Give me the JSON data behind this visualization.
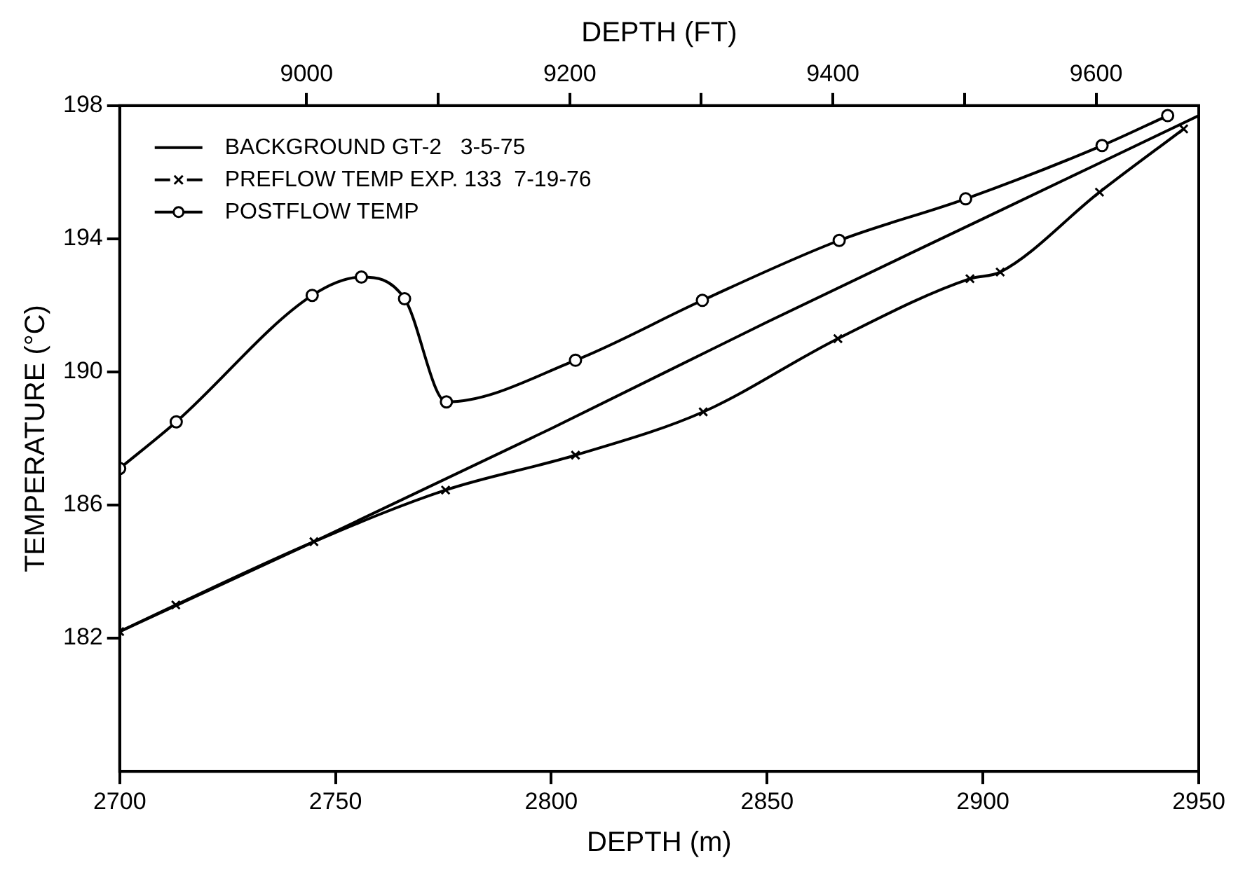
{
  "chart_data": {
    "type": "line",
    "xlabel": "DEPTH (m)",
    "x2label": "DEPTH (FT)",
    "ylabel": "TEMPERATURE (°C)",
    "xlim": [
      2700,
      2950
    ],
    "xticks": [
      2700,
      2750,
      2800,
      2850,
      2900,
      2950
    ],
    "x2lim": [
      8858,
      9678
    ],
    "x2ticks": [
      9000,
      {
        "value": 9100,
        "label": null
      },
      9200,
      {
        "value": 9300,
        "label": null
      },
      9400,
      {
        "value": 9500,
        "label": null
      },
      9600
    ],
    "ylim": [
      178,
      198
    ],
    "yticks": [
      182,
      186,
      190,
      194,
      198
    ],
    "legend": "top left",
    "line_style": "solid",
    "series": [
      {
        "name": "BACKGROUND GT-2   3-5-75",
        "color": "#000000",
        "marker": "none",
        "x": [
          2700,
          2745,
          2800,
          2850,
          2900,
          2950
        ],
        "values": [
          182.2,
          184.9,
          188.3,
          191.5,
          194.6,
          197.7
        ]
      },
      {
        "name": "PREFLOW TEMP EXP. 133  7-19-76",
        "color": "#000000",
        "marker": "cross",
        "x": [
          2700,
          2713,
          2745,
          2775.5,
          2805.6,
          2835.2,
          2866.4,
          2897,
          2904,
          2927,
          2946.5
        ],
        "values": [
          182.2,
          183.0,
          184.9,
          186.45,
          187.5,
          188.8,
          191.0,
          192.8,
          193.0,
          195.4,
          197.3
        ]
      },
      {
        "name": "POSTFLOW TEMP",
        "color": "#000000",
        "marker": "circle",
        "x": [
          2700,
          2713.1,
          2744.6,
          2756,
          2766,
          2775.7,
          2805.6,
          2835,
          2866.7,
          2896,
          2927.6,
          2942.8
        ],
        "values": [
          187.1,
          188.5,
          192.3,
          192.85,
          192.2,
          189.1,
          190.35,
          192.15,
          193.95,
          195.2,
          196.8,
          197.7
        ]
      }
    ]
  }
}
